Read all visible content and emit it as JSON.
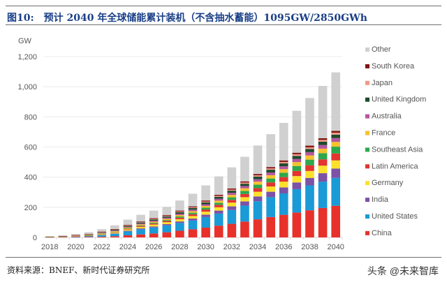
{
  "header": {
    "figure_label": "图10:",
    "title": "预计 2040 年全球储能累计装机（不含抽水蓄能）1095GW/2850GWh"
  },
  "footer": {
    "source": "资料来源：BNEF、新时代证券研究所",
    "watermark": "头条 @未来智库"
  },
  "chart_data": {
    "type": "bar",
    "stacked": true,
    "title": "",
    "ylabel": "GW",
    "xlabel": "",
    "ylim": [
      0,
      1200
    ],
    "yticks": [
      "0",
      "200",
      "400",
      "600",
      "800",
      "1,000",
      "1,200"
    ],
    "ytick_values": [
      0,
      200,
      400,
      600,
      800,
      1000,
      1200
    ],
    "grid": true,
    "legend_position": "right",
    "categories": [
      "2018",
      "2019",
      "2020",
      "2021",
      "2022",
      "2023",
      "2024",
      "2025",
      "2026",
      "2027",
      "2028",
      "2029",
      "2030",
      "2031",
      "2032",
      "2033",
      "2034",
      "2035",
      "2036",
      "2037",
      "2038",
      "2039",
      "2040"
    ],
    "xtick_labels": [
      "2018",
      "2020",
      "2022",
      "2024",
      "2026",
      "2028",
      "2030",
      "2032",
      "2034",
      "2036",
      "2038",
      "2040"
    ],
    "series": [
      {
        "name": "China",
        "color": "#e8312a",
        "values": [
          1,
          1,
          2,
          3,
          5,
          8,
          14,
          20,
          26,
          34,
          44,
          54,
          65,
          78,
          90,
          105,
          120,
          135,
          150,
          165,
          180,
          195,
          210
        ]
      },
      {
        "name": "United States",
        "color": "#1a9ad6",
        "values": [
          1,
          2,
          3,
          5,
          10,
          16,
          26,
          34,
          40,
          46,
          52,
          58,
          70,
          80,
          92,
          106,
          120,
          132,
          142,
          155,
          165,
          175,
          185
        ]
      },
      {
        "name": "India",
        "color": "#7b52a6",
        "values": [
          0,
          0,
          0,
          1,
          2,
          3,
          5,
          6,
          7,
          8,
          10,
          13,
          16,
          20,
          24,
          28,
          32,
          36,
          40,
          45,
          50,
          56,
          62
        ]
      },
      {
        "name": "Germany",
        "color": "#fbe12b",
        "values": [
          1,
          1,
          2,
          3,
          4,
          6,
          8,
          10,
          12,
          13,
          15,
          17,
          20,
          22,
          25,
          28,
          31,
          35,
          38,
          42,
          46,
          50,
          54
        ]
      },
      {
        "name": "Latin America",
        "color": "#e3342f",
        "values": [
          0,
          0,
          1,
          1,
          2,
          3,
          4,
          6,
          7,
          8,
          10,
          12,
          14,
          16,
          18,
          21,
          24,
          27,
          30,
          34,
          38,
          42,
          46
        ]
      },
      {
        "name": "Southeast Asia",
        "color": "#2ea84a",
        "values": [
          0,
          0,
          0,
          1,
          1,
          2,
          3,
          4,
          5,
          6,
          8,
          10,
          12,
          14,
          17,
          20,
          23,
          26,
          29,
          33,
          37,
          41,
          45
        ]
      },
      {
        "name": "France",
        "color": "#f6c22e",
        "values": [
          1,
          1,
          2,
          2,
          3,
          4,
          5,
          6,
          7,
          8,
          9,
          10,
          12,
          14,
          16,
          18,
          20,
          22,
          24,
          26,
          28,
          30,
          32
        ]
      },
      {
        "name": "Australia",
        "color": "#b5569e",
        "values": [
          0,
          1,
          1,
          2,
          3,
          4,
          5,
          6,
          7,
          8,
          9,
          10,
          11,
          12,
          14,
          15,
          16,
          18,
          19,
          21,
          22,
          24,
          25
        ]
      },
      {
        "name": "United Kingdom",
        "color": "#1d4a2e",
        "values": [
          1,
          1,
          2,
          3,
          4,
          5,
          6,
          7,
          8,
          9,
          10,
          11,
          12,
          13,
          14,
          15,
          17,
          18,
          19,
          20,
          21,
          22,
          23
        ]
      },
      {
        "name": "Japan",
        "color": "#ef9a86",
        "values": [
          0,
          1,
          1,
          1,
          2,
          2,
          3,
          3,
          4,
          4,
          5,
          5,
          6,
          7,
          7,
          8,
          9,
          9,
          10,
          11,
          11,
          12,
          13
        ]
      },
      {
        "name": "South Korea",
        "color": "#7d1414",
        "values": [
          1,
          1,
          2,
          2,
          3,
          3,
          4,
          4,
          5,
          5,
          6,
          6,
          7,
          7,
          8,
          8,
          9,
          9,
          10,
          10,
          11,
          11,
          12
        ]
      },
      {
        "name": "Other",
        "color": "#d0d0d0",
        "values": [
          2,
          5,
          6,
          11,
          16,
          24,
          35,
          44,
          50,
          54,
          67,
          84,
          100,
          122,
          140,
          163,
          189,
          218,
          249,
          278,
          316,
          347,
          388
        ]
      }
    ],
    "legend_order": [
      "Other",
      "South Korea",
      "Japan",
      "United Kingdom",
      "Australia",
      "France",
      "Southeast Asia",
      "Latin America",
      "Germany",
      "India",
      "United States",
      "China"
    ]
  }
}
